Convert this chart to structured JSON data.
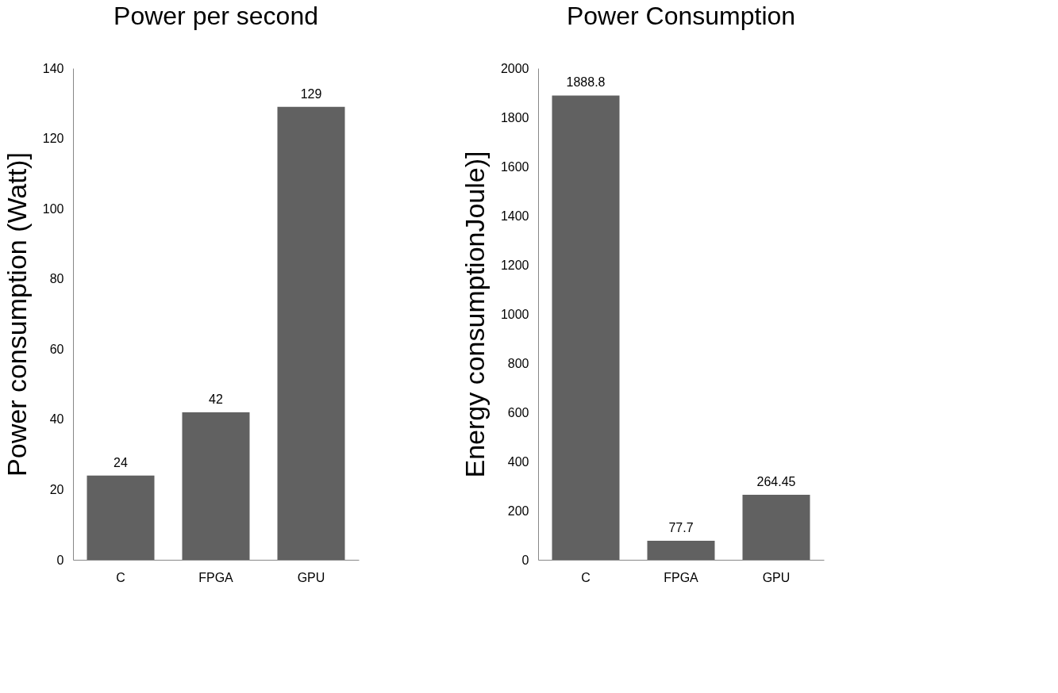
{
  "chart_data": [
    {
      "type": "bar",
      "title": "Power per second",
      "ylabel": "Power consumption (Watt)]",
      "categories": [
        "C",
        "FPGA",
        "GPU"
      ],
      "values": [
        24,
        42,
        129
      ],
      "color": "#616161",
      "ylim": [
        0,
        140
      ],
      "yticks": [
        0,
        20,
        40,
        60,
        80,
        100,
        120,
        140
      ],
      "data_labels": true,
      "grid": false,
      "legend": false
    },
    {
      "type": "bar",
      "title": "Power Consumption",
      "ylabel": "Energy consumptionJoule)]",
      "categories": [
        "C",
        "FPGA",
        "GPU"
      ],
      "values": [
        1888.8,
        77.7,
        264.45
      ],
      "color": "#616161",
      "ylim": [
        0,
        2000
      ],
      "yticks": [
        0,
        200,
        400,
        600,
        800,
        1000,
        1200,
        1400,
        1600,
        1800,
        2000
      ],
      "data_labels": true,
      "grid": false,
      "legend": false
    }
  ]
}
